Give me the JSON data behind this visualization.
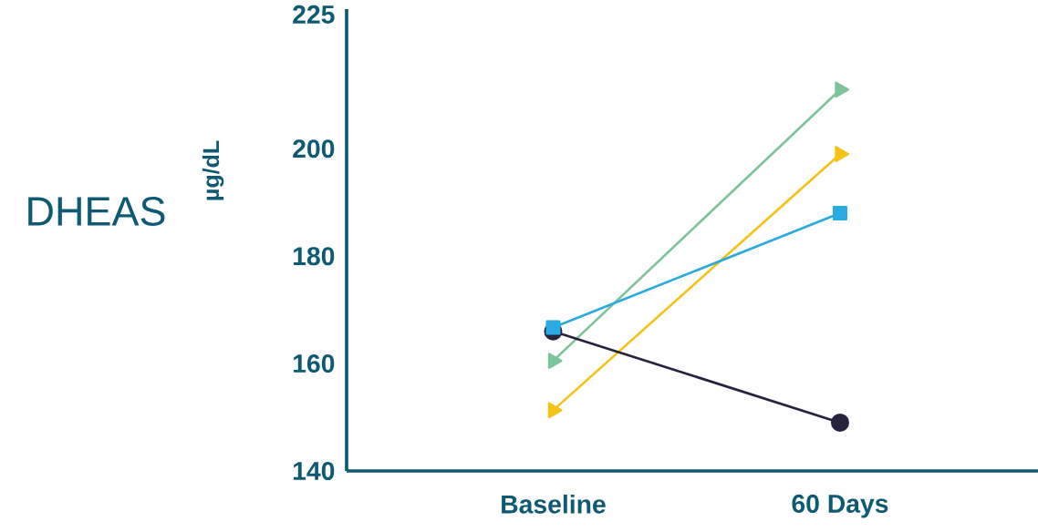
{
  "chart_data": {
    "type": "line",
    "title": "DHEAS",
    "ylabel": "µg/dL",
    "categories": [
      "Baseline",
      "60 Days"
    ],
    "series": [
      {
        "color": "#7dc49a",
        "values": [
          160.5,
          211
        ],
        "marker": "triangle"
      },
      {
        "color": "#f5c216",
        "values": [
          151.3,
          199
        ],
        "marker": "triangle"
      },
      {
        "color": "#27233f",
        "values": [
          166,
          149
        ],
        "marker": "circle"
      },
      {
        "color": "#29abe2",
        "values": [
          166.7,
          188
        ],
        "marker": "square"
      }
    ],
    "ylim": [
      140,
      226
    ],
    "yticks": [
      140,
      160,
      180,
      200,
      225
    ]
  }
}
